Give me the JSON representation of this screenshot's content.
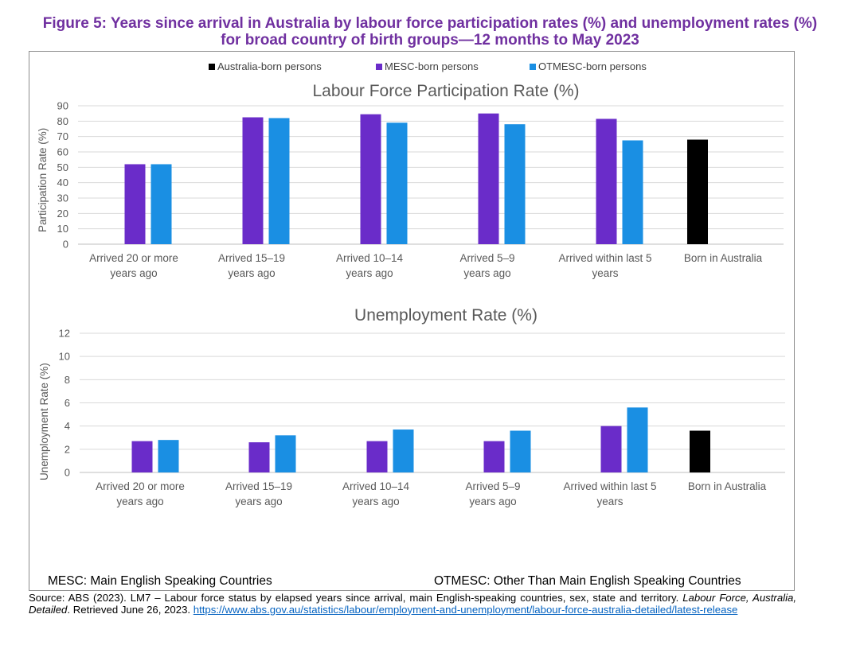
{
  "figure": {
    "title_line1": "Figure 5: Years since arrival in Australia by labour force participation rates (%) and unemployment rates (%)",
    "title_line2": "for broad country of birth groups—12 months to May 2023"
  },
  "legend": [
    {
      "label": "Australia-born persons",
      "color": "#000000"
    },
    {
      "label": "MESC-born persons",
      "color": "#6a2cc9"
    },
    {
      "label": "OTMESC-born persons",
      "color": "#1a8fe3"
    }
  ],
  "chart_data": [
    {
      "type": "bar",
      "title": "Labour Force Participation Rate (%)",
      "xlabel": "",
      "ylabel": "Participation Rate (%)",
      "ylim": [
        0,
        90
      ],
      "yticks": [
        "0",
        "10",
        "20",
        "30",
        "40",
        "50",
        "60",
        "70",
        "80",
        "90"
      ],
      "grid": true,
      "categories": [
        [
          "Arrived 20 or more",
          "years ago"
        ],
        [
          "Arrived 15–19",
          "years ago"
        ],
        [
          "Arrived 10–14",
          "years ago"
        ],
        [
          "Arrived 5–9",
          "years ago"
        ],
        [
          "Arrived within last 5",
          "years"
        ],
        [
          "Born in Australia"
        ]
      ],
      "series": [
        {
          "name": "MESC-born persons",
          "color": "#6a2cc9",
          "values": [
            52,
            82.5,
            84.5,
            85,
            81.5,
            null
          ]
        },
        {
          "name": "OTMESC-born persons",
          "color": "#1a8fe3",
          "values": [
            52,
            82,
            79,
            78,
            67.5,
            null
          ]
        },
        {
          "name": "Australia-born persons",
          "color": "#000000",
          "values": [
            null,
            null,
            null,
            null,
            null,
            68
          ]
        }
      ]
    },
    {
      "type": "bar",
      "title": "Unemployment Rate (%)",
      "xlabel": "",
      "ylabel": "Unemployment Rate (%)",
      "ylim": [
        0,
        12
      ],
      "yticks": [
        "0",
        "2",
        "4",
        "6",
        "8",
        "10",
        "12"
      ],
      "grid": true,
      "categories": [
        [
          "Arrived 20 or more",
          "years ago"
        ],
        [
          "Arrived 15–19",
          "years ago"
        ],
        [
          "Arrived 10–14",
          "years ago"
        ],
        [
          "Arrived 5–9",
          "years ago"
        ],
        [
          "Arrived within last 5",
          "years"
        ],
        [
          "Born in Australia"
        ]
      ],
      "series": [
        {
          "name": "MESC-born persons",
          "color": "#6a2cc9",
          "values": [
            2.7,
            2.6,
            2.7,
            2.7,
            4.0,
            null
          ]
        },
        {
          "name": "OTMESC-born persons",
          "color": "#1a8fe3",
          "values": [
            2.8,
            3.2,
            3.7,
            3.6,
            5.6,
            null
          ]
        },
        {
          "name": "Australia-born persons",
          "color": "#000000",
          "values": [
            null,
            null,
            null,
            null,
            null,
            3.6
          ]
        }
      ]
    }
  ],
  "footer": {
    "left": "MESC: Main English Speaking Countries",
    "right": "OTMESC: Other Than Main English Speaking Countries"
  },
  "source": {
    "prefix": "Source: ABS (2023). LM7 – Labour force status by elapsed years since arrival, main English-speaking countries, sex, state and territory. ",
    "italic": "Labour Force, Australia, Detailed",
    "middle": ". Retrieved June 26, 2023. ",
    "link": "https://www.abs.gov.au/statistics/labour/employment-and-unemployment/labour-force-australia-detailed/latest-release"
  }
}
